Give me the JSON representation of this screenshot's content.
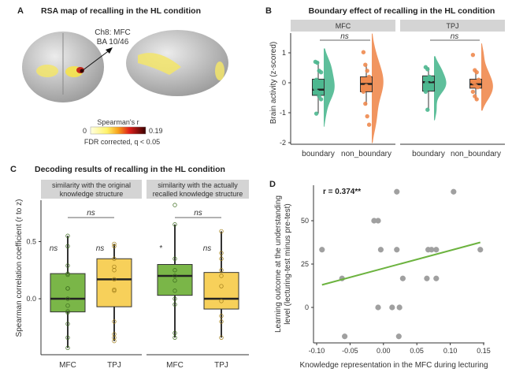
{
  "panel_a": {
    "letter": "A",
    "title": "RSA map of recalling in the HL condition",
    "annotation_line1": "Ch8: MFC",
    "annotation_line2": "BA 10/46",
    "colorbar_title": "Spearman's r",
    "colorbar_min": "0",
    "colorbar_max": "0.19",
    "colorbar_note": "FDR corrected, q < 0.05",
    "colors": {
      "brain": "#cfcfcf",
      "low": "#fff36b",
      "high": "#3a0000"
    }
  },
  "chart_data": [
    {
      "id": "B",
      "type": "box+violin",
      "letter": "B",
      "title": "Boundary effect of recalling in the HL condition",
      "ylabel": "Brain activity (z-scored)",
      "ylim": [
        -2.05,
        1.6
      ],
      "yticks": [
        1,
        0,
        -1,
        -2
      ],
      "facets": [
        {
          "label": "MFC",
          "significance": "ns",
          "groups": [
            {
              "category": "boundary",
              "color": "#4db890",
              "q1": -0.42,
              "median": -0.23,
              "q3": 0.12,
              "whisker_low": -1.03,
              "whisker_high": 0.7,
              "points": [
                0.7,
                0.67,
                0.4,
                0.35,
                0.1,
                0.0,
                -0.1,
                -0.2,
                -0.3,
                -0.45,
                -0.55,
                -1.03
              ]
            },
            {
              "category": "non_boundary",
              "color": "#ef8a4f",
              "q1": -0.3,
              "median": -0.04,
              "q3": 0.2,
              "whisker_low": -0.75,
              "whisker_high": 0.6,
              "points": [
                1.02,
                0.6,
                0.4,
                0.2,
                0.1,
                -0.1,
                -0.2,
                -0.3,
                -0.7,
                -1.12,
                -1.4
              ]
            }
          ]
        },
        {
          "label": "TPJ",
          "significance": "ns",
          "groups": [
            {
              "category": "boundary",
              "color": "#4db890",
              "q1": -0.28,
              "median": 0.02,
              "q3": 0.23,
              "whisker_low": -0.9,
              "whisker_high": 0.52,
              "points": [
                0.52,
                0.45,
                0.2,
                0.1,
                0.0,
                -0.1,
                -0.2,
                -0.3,
                -0.9
              ]
            },
            {
              "category": "non_boundary",
              "color": "#ef8a4f",
              "q1": -0.18,
              "median": -0.05,
              "q3": 0.12,
              "whisker_low": -0.55,
              "whisker_high": 0.42,
              "points": [
                0.93,
                0.42,
                0.35,
                0.1,
                0.0,
                -0.1,
                -0.15,
                -0.3,
                -0.45,
                -0.55
              ]
            }
          ]
        }
      ]
    },
    {
      "id": "C",
      "type": "box",
      "letter": "C",
      "title": "Decoding results of recalling in the HL condition",
      "ylabel": "Spearman correlation coefficient (r to z)",
      "ylim": [
        -0.49,
        0.83
      ],
      "yticks": [
        0.5,
        0.0
      ],
      "ytick_labels": [
        "0.5",
        "0.0"
      ],
      "facets": [
        {
          "label_line1": "similarity with the original",
          "label_line2": "knowledge structure",
          "significance": "ns",
          "groups": [
            {
              "category": "MFC",
              "color": "#7ab648",
              "mark": "ns",
              "q1": -0.115,
              "median": 0.0,
              "q3": 0.22,
              "whisker_low": -0.43,
              "whisker_high": 0.55,
              "points": [
                0.55,
                0.46,
                0.29,
                0.22,
                0.21,
                0.09,
                0.09,
                0.0,
                -0.06,
                -0.11,
                -0.12,
                -0.22,
                -0.34,
                -0.43
              ]
            },
            {
              "category": "TPJ",
              "color": "#f7d05a",
              "mark": "ns",
              "q1": -0.07,
              "median": 0.17,
              "q3": 0.35,
              "whisker_low": -0.37,
              "whisker_high": 0.48,
              "points": [
                0.48,
                0.46,
                0.35,
                0.28,
                0.25,
                0.17,
                0.08,
                0.07,
                -0.2,
                -0.31,
                -0.34,
                -0.37
              ]
            }
          ]
        },
        {
          "label_line1": "similarity with the actually",
          "label_line2": "recalled knowledge structure",
          "significance": "ns",
          "groups": [
            {
              "category": "MFC",
              "color": "#7ab648",
              "mark": "*",
              "q1": 0.03,
              "median": 0.2,
              "q3": 0.3,
              "whisker_low": -0.34,
              "whisker_high": 0.65,
              "points": [
                0.82,
                0.65,
                0.35,
                0.25,
                0.2,
                0.16,
                0.07,
                0.0,
                -0.05,
                -0.3,
                -0.34
              ]
            },
            {
              "category": "TPJ",
              "color": "#f7d05a",
              "mark": "ns",
              "q1": -0.09,
              "median": 0.0,
              "q3": 0.23,
              "whisker_low": -0.34,
              "whisker_high": 0.59,
              "points": [
                0.59,
                0.4,
                0.35,
                0.25,
                0.2,
                0.11,
                -0.02,
                -0.15,
                -0.2,
                -0.34
              ]
            }
          ]
        }
      ]
    },
    {
      "id": "D",
      "type": "scatter",
      "letter": "D",
      "annotation": "r = 0.374**",
      "xlabel": "Knowledge representation in the MFC during lecturing",
      "ylabel_line1": "Learning outcome at the understanding",
      "ylabel_line2": "level (lecturing-test minus pre-test)",
      "xlim": [
        -0.105,
        0.151
      ],
      "ylim": [
        -20.5,
        70.5
      ],
      "xticks": [
        -0.1,
        -0.05,
        0.0,
        0.05,
        0.1,
        0.15
      ],
      "xtick_labels": [
        "-0.10",
        "-0.05",
        "0.00",
        "0.05",
        "0.10",
        "0.15"
      ],
      "yticks": [
        50,
        25,
        0
      ],
      "ytick_labels": [
        "50",
        "25",
        "0"
      ],
      "point_color": "#a0a0a0",
      "fit_color": "#6cb33f",
      "fit_line": [
        [
          -0.092,
          13
        ],
        [
          0.145,
          37.5
        ]
      ],
      "points": [
        [
          0.02,
          66.7
        ],
        [
          0.105,
          66.7
        ],
        [
          -0.014,
          50
        ],
        [
          -0.008,
          50
        ],
        [
          -0.092,
          33.3
        ],
        [
          -0.004,
          33.3
        ],
        [
          0.02,
          33.3
        ],
        [
          0.067,
          33.3
        ],
        [
          0.072,
          33.3
        ],
        [
          0.079,
          33.3
        ],
        [
          0.145,
          33.3
        ],
        [
          -0.062,
          16.7
        ],
        [
          0.029,
          16.7
        ],
        [
          0.065,
          16.7
        ],
        [
          0.079,
          16.7
        ],
        [
          -0.008,
          0
        ],
        [
          0.013,
          0
        ],
        [
          0.024,
          0
        ],
        [
          -0.058,
          -16.7
        ],
        [
          0.023,
          -16.7
        ]
      ]
    }
  ]
}
